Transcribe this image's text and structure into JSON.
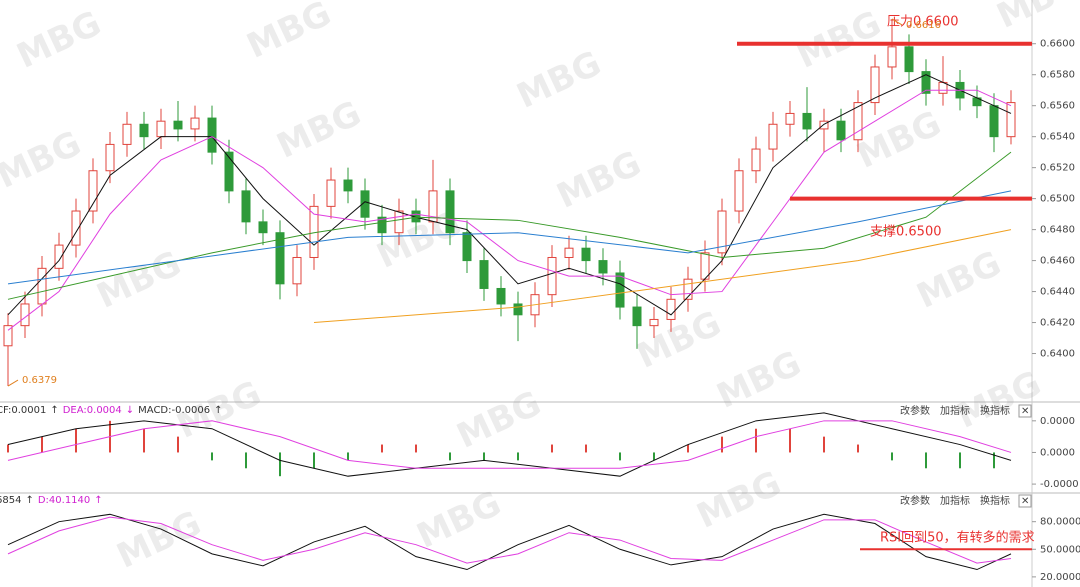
{
  "watermark": "MBG",
  "chart_data": [
    {
      "type": "candlestick",
      "up_color": "#e0443c",
      "down_color": "#2e9a3a",
      "open": [
        0.6405,
        0.6418,
        0.6432,
        0.6455,
        0.647,
        0.6492,
        0.6518,
        0.6535,
        0.6548,
        0.654,
        0.655,
        0.6545,
        0.6552,
        0.653,
        0.6505,
        0.6485,
        0.6478,
        0.6445,
        0.6462,
        0.6495,
        0.6512,
        0.6505,
        0.6488,
        0.6478,
        0.6492,
        0.6485,
        0.6505,
        0.6478,
        0.646,
        0.6442,
        0.6432,
        0.6425,
        0.6438,
        0.6462,
        0.6468,
        0.646,
        0.6452,
        0.643,
        0.6418,
        0.6422,
        0.6435,
        0.6448,
        0.6465,
        0.6492,
        0.6518,
        0.6532,
        0.6548,
        0.6555,
        0.6545,
        0.655,
        0.6538,
        0.6562,
        0.6585,
        0.6598,
        0.6582,
        0.6568,
        0.6575,
        0.6565,
        0.656,
        0.654
      ],
      "high": [
        0.6426,
        0.644,
        0.6463,
        0.6478,
        0.65,
        0.6526,
        0.6543,
        0.6556,
        0.6556,
        0.6558,
        0.6563,
        0.656,
        0.656,
        0.6538,
        0.6513,
        0.6493,
        0.6486,
        0.647,
        0.6503,
        0.652,
        0.652,
        0.6513,
        0.6496,
        0.65,
        0.65,
        0.6525,
        0.6513,
        0.6486,
        0.6468,
        0.645,
        0.644,
        0.6446,
        0.647,
        0.6476,
        0.6476,
        0.6468,
        0.646,
        0.6438,
        0.643,
        0.6443,
        0.6456,
        0.6473,
        0.65,
        0.6526,
        0.654,
        0.6556,
        0.6563,
        0.6572,
        0.6558,
        0.6558,
        0.657,
        0.6593,
        0.6616,
        0.6606,
        0.659,
        0.6592,
        0.6583,
        0.6573,
        0.6568,
        0.657
      ],
      "low": [
        0.6379,
        0.641,
        0.6424,
        0.6447,
        0.6462,
        0.6484,
        0.651,
        0.6527,
        0.6532,
        0.6532,
        0.6537,
        0.6537,
        0.6522,
        0.6497,
        0.6477,
        0.647,
        0.6435,
        0.6437,
        0.6454,
        0.6487,
        0.6497,
        0.648,
        0.647,
        0.647,
        0.6477,
        0.6477,
        0.647,
        0.6452,
        0.6434,
        0.6424,
        0.6408,
        0.6417,
        0.643,
        0.6454,
        0.6452,
        0.6444,
        0.6422,
        0.6403,
        0.641,
        0.6414,
        0.6427,
        0.644,
        0.6457,
        0.6484,
        0.651,
        0.6524,
        0.654,
        0.6537,
        0.653,
        0.653,
        0.653,
        0.6554,
        0.6577,
        0.6574,
        0.656,
        0.656,
        0.6557,
        0.6552,
        0.653,
        0.6535
      ],
      "close": [
        0.6418,
        0.6432,
        0.6455,
        0.647,
        0.6492,
        0.6518,
        0.6535,
        0.6548,
        0.654,
        0.655,
        0.6545,
        0.6552,
        0.653,
        0.6505,
        0.6485,
        0.6478,
        0.6445,
        0.6462,
        0.6495,
        0.6512,
        0.6505,
        0.6488,
        0.6478,
        0.6492,
        0.6485,
        0.6505,
        0.6478,
        0.646,
        0.6442,
        0.6432,
        0.6425,
        0.6438,
        0.6462,
        0.6468,
        0.646,
        0.6452,
        0.643,
        0.6418,
        0.6422,
        0.6435,
        0.6448,
        0.6465,
        0.6492,
        0.6518,
        0.6532,
        0.6548,
        0.6555,
        0.6545,
        0.655,
        0.6538,
        0.6562,
        0.6585,
        0.6598,
        0.6582,
        0.6568,
        0.6575,
        0.6565,
        0.656,
        0.654,
        0.6562
      ],
      "series": [
        {
          "color": "#111111",
          "x": [
            0,
            3,
            6,
            9,
            12,
            15,
            18,
            21,
            24,
            27,
            30,
            33,
            36,
            39,
            42,
            45,
            48,
            51,
            54,
            57,
            59
          ],
          "values": [
            0.6425,
            0.646,
            0.6515,
            0.654,
            0.654,
            0.65,
            0.647,
            0.6498,
            0.6488,
            0.648,
            0.6445,
            0.6455,
            0.6445,
            0.6425,
            0.646,
            0.652,
            0.6548,
            0.6565,
            0.658,
            0.6565,
            0.6555
          ]
        },
        {
          "color": "#e040e0",
          "x": [
            0,
            3,
            6,
            9,
            12,
            15,
            18,
            21,
            24,
            27,
            30,
            33,
            36,
            39,
            42,
            45,
            48,
            51,
            54,
            57,
            59
          ],
          "values": [
            0.6415,
            0.644,
            0.649,
            0.6525,
            0.654,
            0.652,
            0.649,
            0.6485,
            0.649,
            0.6485,
            0.646,
            0.645,
            0.645,
            0.6438,
            0.644,
            0.6485,
            0.653,
            0.655,
            0.657,
            0.657,
            0.656
          ]
        },
        {
          "color": "#3a9a2a",
          "x": [
            0,
            6,
            12,
            18,
            24,
            30,
            36,
            42,
            48,
            54,
            59
          ],
          "values": [
            0.6435,
            0.645,
            0.6465,
            0.6478,
            0.6488,
            0.6486,
            0.6475,
            0.6462,
            0.6468,
            0.6488,
            0.653
          ]
        },
        {
          "color": "#2a7fd0",
          "x": [
            0,
            10,
            20,
            30,
            40,
            50,
            59
          ],
          "values": [
            0.6445,
            0.646,
            0.6475,
            0.6478,
            0.6465,
            0.6485,
            0.6505
          ]
        },
        {
          "color": "#f0a020",
          "x": [
            18,
            30,
            40,
            50,
            59
          ],
          "values": [
            0.642,
            0.643,
            0.6445,
            0.646,
            0.648
          ]
        }
      ],
      "ylim": [
        0.637,
        0.6625
      ],
      "yticks": [
        {
          "value": 0.66,
          "label": "0.6600"
        },
        {
          "value": 0.658,
          "label": "0.6580"
        },
        {
          "value": 0.656,
          "label": "0.6560"
        },
        {
          "value": 0.654,
          "label": "0.6540"
        },
        {
          "value": 0.652,
          "label": "0.6520"
        },
        {
          "value": 0.65,
          "label": "0.6500"
        },
        {
          "value": 0.648,
          "label": "0.6480"
        },
        {
          "value": 0.646,
          "label": "0.6460"
        },
        {
          "value": 0.644,
          "label": "0.6440"
        },
        {
          "value": 0.642,
          "label": "0.6420"
        },
        {
          "value": 0.64,
          "label": "0.6400"
        }
      ],
      "levels": [
        {
          "value": 0.66,
          "label": "压力0.6600",
          "color": "#e8312f"
        },
        {
          "value": 0.65,
          "label": "支撑0.6500",
          "color": "#e8312f"
        }
      ],
      "annotations": [
        {
          "value": 0.6616,
          "x": 52
        },
        {
          "value": 0.6379,
          "x": 0
        }
      ]
    },
    {
      "type": "macd",
      "header": [
        {
          "text": "CF:0.0001",
          "color": "#333333"
        },
        {
          "text": "↑",
          "color": "#333333"
        },
        {
          "text": "DEA:0.0004",
          "color": "#d020d0"
        },
        {
          "text": "↓",
          "color": "#d020d0"
        },
        {
          "text": "MACD:-0.0006",
          "color": "#333333"
        },
        {
          "text": "↑",
          "color": "#333333"
        }
      ],
      "buttons": [
        "改参数",
        "加指标",
        "换指标",
        "✕"
      ],
      "bars": {
        "positive_color": "#e0443c",
        "negative_color": "#2e9a3a",
        "x": [
          0,
          2,
          4,
          6,
          8,
          10,
          12,
          14,
          16,
          18,
          20,
          22,
          24,
          26,
          28,
          30,
          32,
          34,
          36,
          38,
          40,
          42,
          44,
          46,
          48,
          50,
          52,
          54,
          56,
          58
        ],
        "values": [
          1e-05,
          2e-05,
          3e-05,
          4e-05,
          3e-05,
          2e-05,
          -1e-05,
          -2e-05,
          -3e-05,
          -2e-05,
          -1e-05,
          1e-05,
          1e-05,
          -1e-05,
          -1e-05,
          -1e-05,
          1e-05,
          1e-05,
          -1e-05,
          -1e-05,
          1e-05,
          2e-05,
          3e-05,
          3e-05,
          2e-05,
          1e-05,
          -1e-05,
          -2e-05,
          -2e-05,
          -2e-05
        ]
      },
      "series": [
        {
          "color": "#111111",
          "x": [
            0,
            4,
            8,
            12,
            16,
            20,
            24,
            28,
            32,
            36,
            40,
            44,
            48,
            52,
            56,
            59
          ],
          "values": [
            1e-05,
            3e-05,
            4e-05,
            3e-05,
            -1e-05,
            -3e-05,
            -2e-05,
            -1e-05,
            -2e-05,
            -3e-05,
            1e-05,
            4e-05,
            5e-05,
            3e-05,
            1e-05,
            -1e-05
          ]
        },
        {
          "color": "#e040e0",
          "x": [
            0,
            4,
            8,
            12,
            16,
            20,
            24,
            28,
            32,
            36,
            40,
            44,
            48,
            52,
            56,
            59
          ],
          "values": [
            -1e-05,
            1e-05,
            3e-05,
            4e-05,
            2e-05,
            -1e-05,
            -2e-05,
            -2e-05,
            -2e-05,
            -2e-05,
            -1e-05,
            2e-05,
            4e-05,
            4e-05,
            2e-05,
            0
          ]
        }
      ],
      "ylim": [
        -5e-05,
        6e-05
      ],
      "yticks": [
        {
          "value": 4e-05,
          "label": "0.0000"
        },
        {
          "value": 0,
          "label": "0.0000"
        },
        {
          "value": -4e-05,
          "label": "-0.0000"
        }
      ]
    },
    {
      "type": "line",
      "header": [
        {
          "text": "6854",
          "color": "#333333"
        },
        {
          "text": "↑",
          "color": "#333333"
        },
        {
          "text": "D:40.1140",
          "color": "#d020d0"
        },
        {
          "text": "↑",
          "color": "#d020d0"
        }
      ],
      "buttons": [
        "改参数",
        "加指标",
        "换指标",
        "✕"
      ],
      "series": [
        {
          "color": "#111111",
          "x": [
            0,
            3,
            6,
            9,
            12,
            15,
            18,
            21,
            24,
            27,
            30,
            33,
            36,
            39,
            42,
            45,
            48,
            51,
            54,
            57,
            59
          ],
          "values": [
            55,
            80,
            88,
            72,
            45,
            32,
            58,
            75,
            42,
            28,
            55,
            76,
            50,
            33,
            42,
            72,
            88,
            78,
            42,
            28,
            45
          ]
        },
        {
          "color": "#e040e0",
          "x": [
            0,
            3,
            6,
            9,
            12,
            15,
            18,
            21,
            24,
            27,
            30,
            33,
            36,
            39,
            42,
            45,
            48,
            51,
            54,
            57,
            59
          ],
          "values": [
            45,
            70,
            85,
            78,
            55,
            38,
            50,
            68,
            55,
            35,
            45,
            68,
            60,
            40,
            38,
            60,
            82,
            82,
            58,
            35,
            40
          ]
        }
      ],
      "ylim": [
        9,
        109
      ],
      "yticks": [
        {
          "value": 80,
          "label": "80.0000"
        },
        {
          "value": 50,
          "label": "50.0000"
        },
        {
          "value": 20,
          "label": "20.0000"
        }
      ],
      "levels": [
        {
          "value": 50,
          "label": "RSI回到50，有转多的需求",
          "color": "#e8312f"
        }
      ]
    }
  ]
}
